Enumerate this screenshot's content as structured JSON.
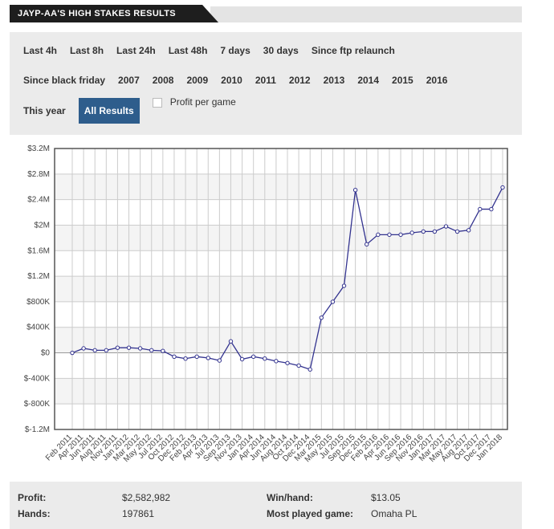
{
  "header": {
    "title": "JAYP-AA'S HIGH STAKES RESULTS"
  },
  "filters": {
    "rows": [
      [
        "Last 4h",
        "Last 8h",
        "Last 24h",
        "Last 48h",
        "7 days",
        "30 days",
        "Since ftp relaunch"
      ],
      [
        "Since black friday",
        "2007",
        "2008",
        "2009",
        "2010",
        "2011",
        "2012",
        "2013",
        "2014",
        "2015",
        "2016"
      ],
      [
        "This year",
        "All Results"
      ]
    ],
    "checkbox": "Profit per game"
  },
  "chart_data": {
    "type": "line",
    "categories": [
      "Feb 2011",
      "Apr 2011",
      "Jun 2011",
      "Aug 2011",
      "Nov 2011",
      "Jan 2012",
      "Mar 2012",
      "May 2012",
      "Jul 2012",
      "Oct 2012",
      "Dec 2012",
      "Feb 2013",
      "Apr 2013",
      "Jul 2013",
      "Sep 2013",
      "Nov 2013",
      "Jan 2014",
      "Apr 2014",
      "Jun 2014",
      "Aug 2014",
      "Oct 2014",
      "Dec 2014",
      "Mar 2015",
      "May 2015",
      "Jul 2015",
      "Sep 2015",
      "Dec 2015",
      "Feb 2016",
      "Apr 2016",
      "Jun 2016",
      "Sep 2016",
      "Nov 2016",
      "Jan 2017",
      "Mar 2017",
      "May 2017",
      "Aug 2017",
      "Oct 2017",
      "Dec 2017",
      "Jan 2018"
    ],
    "series": [
      {
        "color": "#33338f",
        "values": [
          0,
          70000,
          40000,
          40000,
          80000,
          80000,
          70000,
          40000,
          30000,
          -60000,
          -90000,
          -60000,
          -80000,
          -120000,
          180000,
          -100000,
          -60000,
          -90000,
          -130000,
          -160000,
          -200000,
          -260000,
          550000,
          800000,
          1050000,
          2550000,
          1700000,
          1850000,
          1850000,
          1850000,
          1880000,
          1900000,
          1900000,
          1980000,
          1900000,
          1920000,
          2250000,
          2250000,
          2590000
        ]
      }
    ],
    "ylim": [
      -1200000,
      3200000
    ],
    "yticks": [
      {
        "value": -1200000,
        "label": "$-1.2M"
      },
      {
        "value": -800000,
        "label": "$-800K"
      },
      {
        "value": -400000,
        "label": "$-400K"
      },
      {
        "value": 0,
        "label": "$0"
      },
      {
        "value": 400000,
        "label": "$400K"
      },
      {
        "value": 800000,
        "label": "$800K"
      },
      {
        "value": 1200000,
        "label": "$1.2M"
      },
      {
        "value": 1600000,
        "label": "$1.6M"
      },
      {
        "value": 2000000,
        "label": "$2M"
      },
      {
        "value": 2400000,
        "label": "$2.4M"
      },
      {
        "value": 2800000,
        "label": "$2.8M"
      },
      {
        "value": 3200000,
        "label": "$3.2M"
      }
    ],
    "grid": true
  },
  "stats": {
    "profit_label": "Profit:",
    "profit": "$2,582,982",
    "hands_label": "Hands:",
    "hands": "197861",
    "winhand_label": "Win/hand:",
    "winhand": "$13.05",
    "game_label": "Most played game:",
    "game": "Omaha PL"
  }
}
